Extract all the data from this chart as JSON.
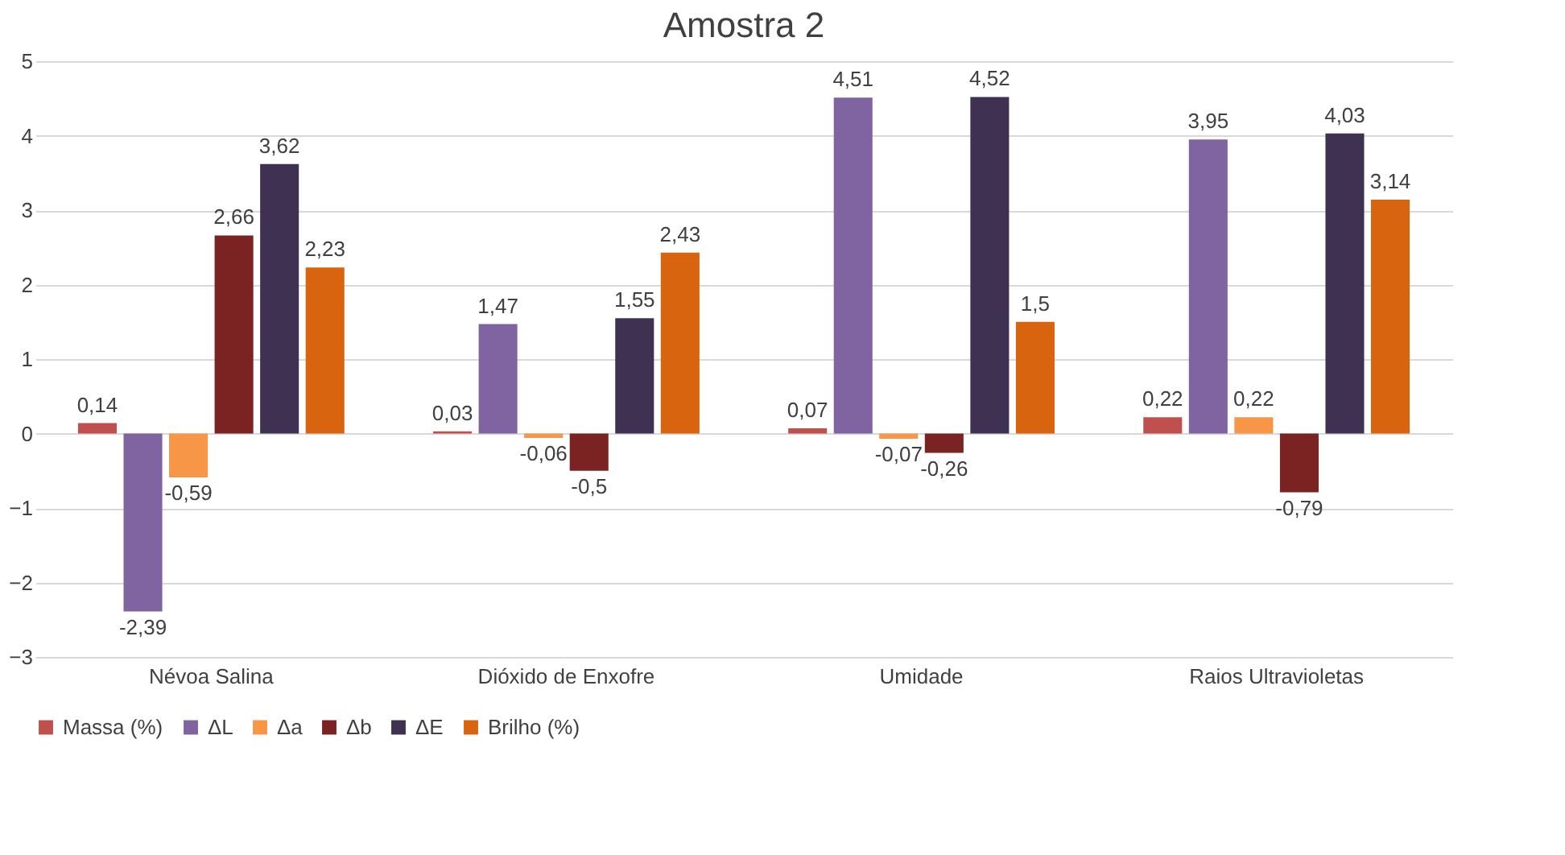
{
  "chart_data": {
    "type": "bar",
    "title": "Amostra 2",
    "categories": [
      "Névoa Salina",
      "Dióxido de Enxofre",
      "Umidade",
      "Raios Ultravioletas"
    ],
    "series": [
      {
        "name": "Massa (%)",
        "color": "#c0504d",
        "values": [
          0.14,
          0.03,
          0.07,
          0.22
        ],
        "value_labels": [
          "0,14",
          "0,03",
          "0,07",
          "0,22"
        ]
      },
      {
        "name": "ΔL",
        "color": "#8064a2",
        "values": [
          -2.39,
          1.47,
          4.51,
          3.95
        ],
        "value_labels": [
          "-2,39",
          "1,47",
          "4,51",
          "3,95"
        ]
      },
      {
        "name": "Δa",
        "color": "#f79646",
        "values": [
          -0.59,
          -0.06,
          -0.07,
          0.22
        ],
        "value_labels": [
          "-0,59",
          "-0,06",
          "-0,07",
          "0,22"
        ]
      },
      {
        "name": "Δb",
        "color": "#7b2222",
        "values": [
          2.66,
          -0.5,
          -0.26,
          -0.79
        ],
        "value_labels": [
          "2,66",
          "-0,5",
          "-0,26",
          "-0,79"
        ]
      },
      {
        "name": "ΔE",
        "color": "#3f3151",
        "values": [
          3.62,
          1.55,
          4.52,
          4.03
        ],
        "value_labels": [
          "3,62",
          "1,55",
          "4,52",
          "4,03"
        ]
      },
      {
        "name": "Brilho (%)",
        "color": "#d9640f",
        "values": [
          2.23,
          2.43,
          1.5,
          3.14
        ],
        "value_labels": [
          "2,23",
          "2,43",
          "1,5",
          "3,14"
        ]
      }
    ],
    "ylim": [
      -3,
      5
    ],
    "yticks": [
      -3,
      -2,
      -1,
      0,
      1,
      2,
      3,
      4,
      5
    ],
    "grid": "y",
    "legend": "bottom"
  }
}
